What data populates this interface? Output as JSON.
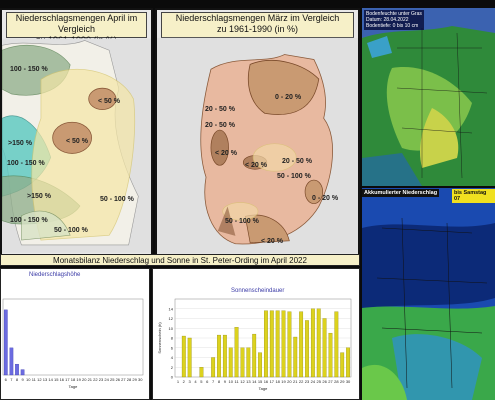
{
  "map_april": {
    "title_line1": "Niederschlagsmengen April im Vergleich",
    "title_line2": "zu 1961-1990 (in %)",
    "labels": [
      "100 - 150 %",
      "< 50 %",
      ">150 %",
      "< 50 %",
      "100 - 150 %",
      ">150 %",
      "100 - 150 %",
      "50 - 100 %",
      "50 - 100 %"
    ]
  },
  "map_march": {
    "title_line1": "Niederschlagsmengen März im Vergleich",
    "title_line2": "zu 1961-1990 (in %)",
    "labels": [
      "0 - 20 %",
      "20 - 50 %",
      "20 - 50 %",
      "< 20 %",
      "< 20 %",
      "20 - 50 %",
      "50 - 100 %",
      "0 - 20 %",
      "< 20 %",
      "50 - 100 %"
    ]
  },
  "soil_map": {
    "line1": "Bodenfeuchte unter Gras",
    "line2": "Datum: 28.04.2022",
    "line3": "Bodentiefe: 0 bis 10 cm"
  },
  "precip_map": {
    "label": "Akkumulierter Niederschlag",
    "badge": "bis Samstag 07"
  },
  "bottom_title": "Monatsbilanz Niederschlag und Sonne in St. Peter-Ording im April 2022",
  "chart_data": [
    {
      "type": "bar",
      "title": "Niederschlagshöhe",
      "xlabel": "Tage",
      "x_visible": [
        "6",
        "7",
        "8",
        "9",
        "10",
        "11",
        "12",
        "13",
        "14",
        "15",
        "16",
        "17",
        "18",
        "19",
        "20",
        "21",
        "22",
        "23",
        "24",
        "25",
        "26",
        "27",
        "28",
        "29",
        "30"
      ],
      "values": [
        12,
        5,
        2,
        1,
        0,
        0,
        0,
        0,
        0,
        0,
        0,
        0,
        0,
        0,
        0,
        0,
        0,
        0,
        0,
        0,
        0,
        0,
        0,
        0,
        0
      ],
      "color": "#6b6be0"
    },
    {
      "type": "bar",
      "title": "Sonnenscheindauer",
      "xlabel": "Tage",
      "ylabel": "Sonnenschein (h)",
      "categories": [
        "1",
        "2",
        "3",
        "4",
        "5",
        "6",
        "7",
        "8",
        "9",
        "10",
        "11",
        "12",
        "13",
        "14",
        "15",
        "16",
        "17",
        "18",
        "19",
        "20",
        "21",
        "22",
        "23",
        "24",
        "25",
        "26",
        "27",
        "28",
        "29",
        "30"
      ],
      "values": [
        0,
        8.4,
        8,
        0,
        2,
        0,
        4,
        8.6,
        8.6,
        6,
        10.2,
        6,
        6,
        8.8,
        5,
        13.6,
        13.6,
        13.6,
        13.6,
        13.4,
        8.2,
        13.4,
        11.6,
        14,
        14,
        12,
        9,
        13.4,
        5,
        6
      ],
      "yticks": [
        0,
        2,
        4,
        6,
        8,
        10,
        12,
        14
      ],
      "ylim": [
        0,
        16
      ],
      "color": "#dcd21e"
    }
  ]
}
